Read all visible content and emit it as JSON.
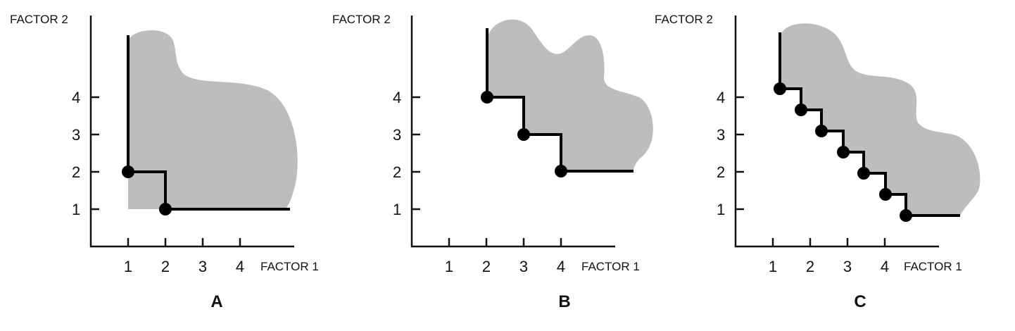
{
  "panels": [
    {
      "label": "A",
      "y_axis_title": "FACTOR 2",
      "x_axis_title": "FACTOR 1",
      "y_ticks": [
        "1",
        "2",
        "3",
        "4"
      ],
      "x_ticks": [
        "1",
        "2",
        "3",
        "4"
      ],
      "points": [
        [
          1,
          2
        ],
        [
          2,
          1
        ]
      ]
    },
    {
      "label": "B",
      "y_axis_title": "FACTOR 2",
      "x_axis_title": "FACTOR 1",
      "y_ticks": [
        "1",
        "2",
        "3",
        "4"
      ],
      "x_ticks": [
        "1",
        "2",
        "3",
        "4"
      ],
      "points": [
        [
          2,
          4
        ],
        [
          3,
          3
        ],
        [
          4,
          2
        ]
      ]
    },
    {
      "label": "C",
      "y_axis_title": "FACTOR 2",
      "x_axis_title": "FACTOR 1",
      "y_ticks": [
        "1",
        "2",
        "3",
        "4"
      ],
      "x_ticks": [
        "1",
        "2",
        "3",
        "4"
      ],
      "points": [
        [
          1.2,
          4.2
        ],
        [
          1.75,
          3.65
        ],
        [
          2.3,
          3.1
        ],
        [
          2.85,
          2.55
        ],
        [
          3.4,
          2.0
        ],
        [
          3.95,
          1.4
        ],
        [
          4.5,
          0.85
        ]
      ]
    }
  ]
}
